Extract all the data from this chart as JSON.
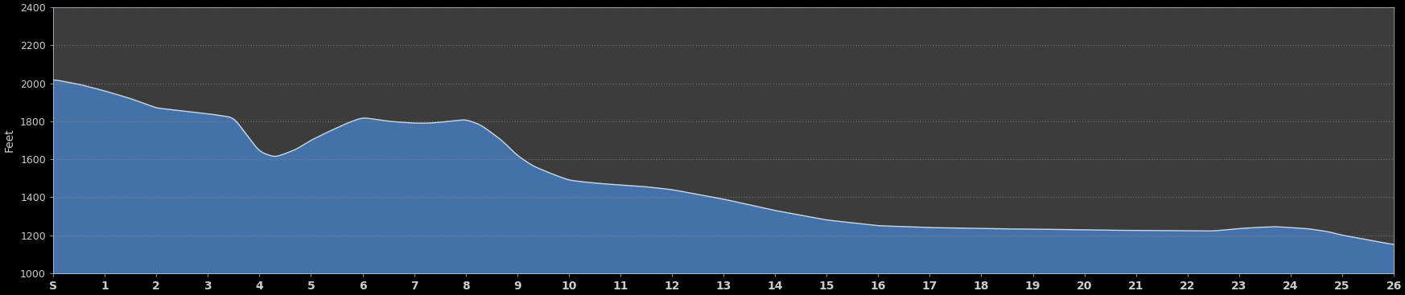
{
  "background_color": "#000000",
  "plot_bg_color": "#3c3c3c",
  "fill_color": "#4472a8",
  "line_color": "#c8d8e8",
  "grid_color": "#888888",
  "ylabel": "Feet",
  "ylim": [
    1000,
    2400
  ],
  "yticks": [
    1000,
    1200,
    1400,
    1600,
    1800,
    2000,
    2200,
    2400
  ],
  "xlabel_color": "#cccccc",
  "ylabel_color": "#cccccc",
  "tick_color": "#cccccc",
  "xtick_labels": [
    "S",
    "1",
    "2",
    "3",
    "4",
    "5",
    "6",
    "7",
    "8",
    "9",
    "10",
    "11",
    "12",
    "13",
    "14",
    "15",
    "16",
    "17",
    "18",
    "19",
    "20",
    "21",
    "22",
    "23",
    "24",
    "25",
    "26"
  ],
  "x_values": [
    0,
    0.5,
    1,
    1.5,
    2,
    2.5,
    3,
    3.5,
    4,
    4.3,
    4.7,
    5,
    5.3,
    5.7,
    6,
    6.5,
    7,
    7.3,
    7.7,
    8,
    8.3,
    8.7,
    9,
    9.3,
    9.7,
    10,
    10.3,
    10.7,
    11,
    11.5,
    12,
    12.5,
    13,
    13.5,
    14,
    14.5,
    15,
    15.5,
    16,
    16.5,
    17,
    17.5,
    18,
    18.5,
    19,
    19.5,
    20,
    20.5,
    21,
    21.5,
    22,
    22.5,
    23,
    23.3,
    23.7,
    24,
    24.3,
    24.7,
    25,
    25.3,
    25.7,
    26
  ],
  "elevation": [
    2020,
    1995,
    1960,
    1920,
    1870,
    1855,
    1840,
    1820,
    1640,
    1610,
    1650,
    1700,
    1740,
    1790,
    1820,
    1800,
    1790,
    1790,
    1800,
    1810,
    1780,
    1700,
    1620,
    1565,
    1520,
    1490,
    1480,
    1470,
    1465,
    1455,
    1440,
    1415,
    1390,
    1360,
    1330,
    1305,
    1280,
    1265,
    1250,
    1245,
    1240,
    1238,
    1235,
    1233,
    1232,
    1230,
    1228,
    1226,
    1225,
    1224,
    1223,
    1222,
    1235,
    1240,
    1245,
    1240,
    1235,
    1220,
    1200,
    1185,
    1165,
    1150
  ]
}
